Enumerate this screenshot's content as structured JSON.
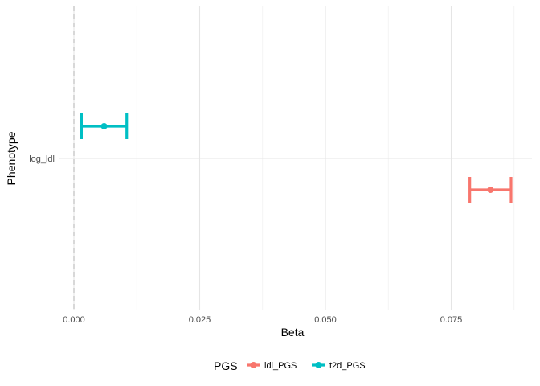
{
  "chart_data": {
    "type": "forest",
    "xlabel": "Beta",
    "ylabel": "Phenotype",
    "categories": [
      "log_ldl"
    ],
    "xlim": [
      0,
      0.0875
    ],
    "x_ticks": [
      0.0,
      0.025,
      0.05,
      0.075
    ],
    "x_tick_labels": [
      "0.000",
      "0.025",
      "0.050",
      "0.075"
    ],
    "reference_line": {
      "x": 0,
      "style": "dashed",
      "color": "#bfbfbf"
    },
    "grid": true,
    "legend": {
      "title": "PGS",
      "position": "bottom"
    },
    "series": [
      {
        "name": "ldl_PGS",
        "color": "#F8766D",
        "category": "log_ldl",
        "beta": 0.0828,
        "lower": 0.0787,
        "upper": 0.0869
      },
      {
        "name": "t2d_PGS",
        "color": "#00BFC4",
        "category": "log_ldl",
        "beta": 0.006,
        "lower": 0.0015,
        "upper": 0.0105
      }
    ]
  }
}
